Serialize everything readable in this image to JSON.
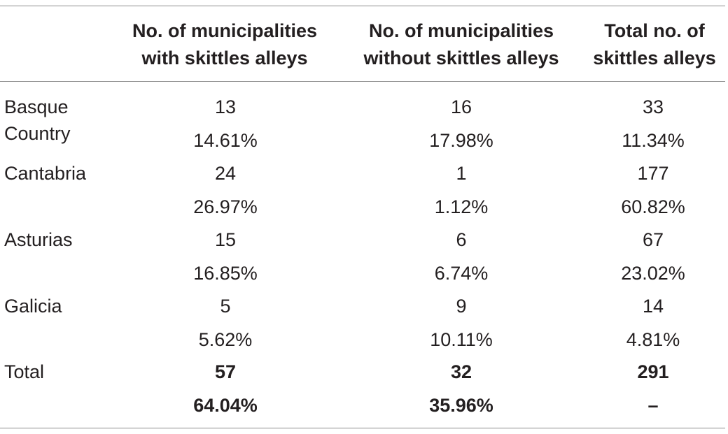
{
  "table": {
    "headers": [
      [
        "",
        ""
      ],
      [
        "No. of municipalities",
        "with skittles alleys"
      ],
      [
        "No. of municipalities",
        "without skittles alleys"
      ],
      [
        "Total no. of",
        "skittles alleys"
      ]
    ],
    "rows": [
      {
        "label_line1": "Basque",
        "label_line2": "Country",
        "counts": [
          "13",
          "16",
          "33"
        ],
        "percents": [
          "14.61%",
          "17.98%",
          "11.34%"
        ]
      },
      {
        "label_line1": "Cantabria",
        "label_line2": "",
        "counts": [
          "24",
          "1",
          "177"
        ],
        "percents": [
          "26.97%",
          "1.12%",
          "60.82%"
        ]
      },
      {
        "label_line1": "Asturias",
        "label_line2": "",
        "counts": [
          "15",
          "6",
          "67"
        ],
        "percents": [
          "16.85%",
          "6.74%",
          "23.02%"
        ]
      },
      {
        "label_line1": "Galicia",
        "label_line2": "",
        "counts": [
          "5",
          "9",
          "14"
        ],
        "percents": [
          "5.62%",
          "10.11%",
          "4.81%"
        ]
      }
    ],
    "total": {
      "label": "Total",
      "counts": [
        "57",
        "32",
        "291"
      ],
      "percents": [
        "64.04%",
        "35.96%",
        "–"
      ]
    }
  }
}
